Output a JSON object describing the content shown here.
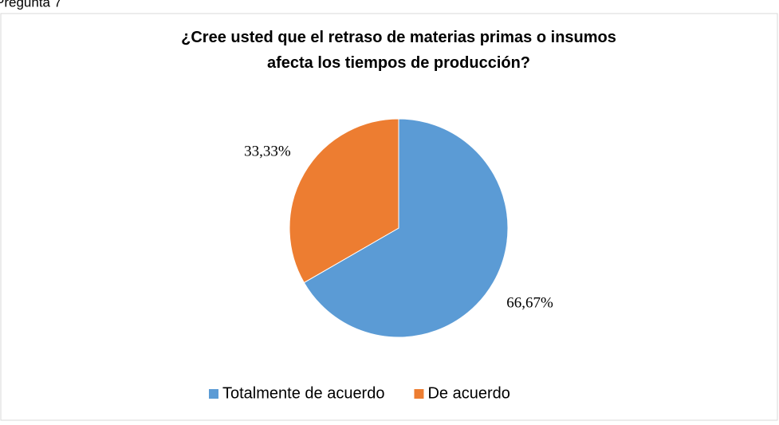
{
  "heading": "Pregunta 7",
  "chart_data": {
    "type": "pie",
    "title": "¿Cree usted que el retraso de materias primas o insumos afecta los tiempos de producción?",
    "categories": [
      "Totalmente de acuerdo",
      "De acuerdo"
    ],
    "values": [
      66.67,
      33.33
    ],
    "value_labels": [
      "66,67%",
      "33,33%"
    ],
    "colors": [
      "#5b9bd5",
      "#ed7d31"
    ],
    "legend": "bottom"
  }
}
